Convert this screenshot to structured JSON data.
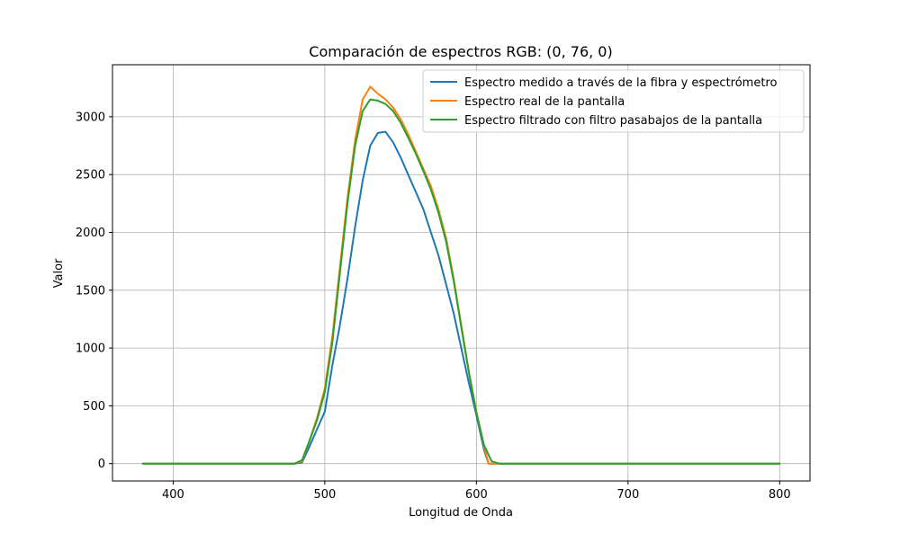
{
  "chart_data": {
    "type": "line",
    "title": "Comparación de espectros RGB: (0, 76, 0)",
    "xlabel": "Longitud de Onda",
    "ylabel": "Valor",
    "xlim": [
      360,
      820
    ],
    "ylim": [
      -150,
      3450
    ],
    "xticks": [
      400,
      500,
      600,
      700,
      800
    ],
    "yticks": [
      0,
      500,
      1000,
      1500,
      2000,
      2500,
      3000
    ],
    "grid": true,
    "legend_position": "top-right",
    "series": [
      {
        "name": "Espectro medido a través de la fibra y espectrómetro",
        "color": "#1f77b4",
        "x": [
          380,
          470,
          480,
          485,
          490,
          495,
          500,
          505,
          510,
          515,
          520,
          525,
          530,
          535,
          540,
          545,
          550,
          555,
          560,
          565,
          570,
          575,
          580,
          585,
          590,
          595,
          600,
          605,
          608,
          612,
          620,
          700,
          800
        ],
        "y": [
          0,
          0,
          0,
          10,
          150,
          300,
          450,
          850,
          1200,
          1600,
          2050,
          2450,
          2750,
          2860,
          2870,
          2780,
          2650,
          2500,
          2350,
          2200,
          2000,
          1800,
          1550,
          1300,
          1000,
          700,
          420,
          120,
          0,
          0,
          0,
          0,
          0
        ]
      },
      {
        "name": "Espectro real de la pantalla",
        "color": "#ff7f0e",
        "x": [
          380,
          470,
          480,
          485,
          490,
          495,
          500,
          505,
          510,
          515,
          520,
          525,
          530,
          535,
          540,
          545,
          550,
          555,
          560,
          565,
          570,
          575,
          580,
          585,
          590,
          595,
          600,
          605,
          608,
          612,
          620,
          700,
          800
        ],
        "y": [
          0,
          0,
          0,
          20,
          200,
          400,
          650,
          1100,
          1700,
          2300,
          2800,
          3150,
          3260,
          3200,
          3150,
          3080,
          2980,
          2850,
          2700,
          2550,
          2400,
          2200,
          1950,
          1600,
          1200,
          800,
          450,
          150,
          0,
          0,
          0,
          0,
          0
        ]
      },
      {
        "name": "Espectro filtrado con filtro pasabajos de la pantalla",
        "color": "#2ca02c",
        "x": [
          380,
          470,
          480,
          485,
          490,
          495,
          500,
          505,
          510,
          515,
          520,
          525,
          530,
          535,
          540,
          545,
          550,
          555,
          560,
          565,
          570,
          575,
          580,
          585,
          590,
          595,
          600,
          605,
          610,
          615,
          620,
          700,
          800
        ],
        "y": [
          0,
          0,
          0,
          30,
          200,
          380,
          620,
          1050,
          1650,
          2250,
          2750,
          3050,
          3150,
          3140,
          3110,
          3050,
          2950,
          2820,
          2680,
          2530,
          2370,
          2170,
          1920,
          1580,
          1180,
          790,
          440,
          160,
          20,
          0,
          0,
          0,
          0
        ]
      }
    ]
  }
}
